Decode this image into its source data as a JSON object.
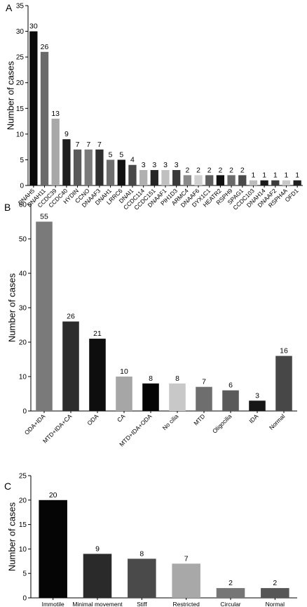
{
  "chart_data": [
    {
      "type": "bar",
      "panel_label": "A",
      "ylabel": "Number of cases",
      "ylim": [
        0,
        35
      ],
      "yticks": [
        0,
        5,
        10,
        15,
        20,
        25,
        30,
        35
      ],
      "categories": [
        "DNAH5",
        "DNAH11",
        "CCDC39",
        "CCDC40",
        "HYDIN",
        "CCNO",
        "DNAAF3",
        "DNAH1",
        "LRRC6",
        "DNAI1",
        "CCDC114",
        "CCDC151",
        "DNAAF1",
        "PIH1D3",
        "ARMC4",
        "DNAAF6",
        "DYX1C1",
        "HEATR2",
        "RSPH9",
        "SPAG1",
        "CCDC103",
        "DNAH14",
        "DNAAF2",
        "RSPH4A",
        "OFD1"
      ],
      "values": [
        30,
        26,
        13,
        9,
        7,
        7,
        7,
        5,
        5,
        4,
        3,
        3,
        3,
        3,
        2,
        2,
        2,
        2,
        2,
        2,
        1,
        1,
        1,
        1,
        1
      ],
      "colors": [
        "#0a0a0a",
        "#6b6b6b",
        "#a8a8a8",
        "#1e1e1e",
        "#5a5a5a",
        "#7a7a7a",
        "#2e2e2e",
        "#6e6e6e",
        "#111111",
        "#484848",
        "#b0b0b0",
        "#252525",
        "#c0c0c0",
        "#3a3a3a",
        "#8a8a8a",
        "#d0d0d0",
        "#5e5e5e",
        "#101010",
        "#6a6a6a",
        "#4a4a4a",
        "#bcbcbc",
        "#1a1a1a",
        "#3c3c3c",
        "#c8c8c8",
        "#202020"
      ]
    },
    {
      "type": "bar",
      "panel_label": "B",
      "ylabel": "Number of cases",
      "ylim": [
        0,
        60
      ],
      "yticks": [
        0,
        10,
        20,
        30,
        40,
        50,
        60
      ],
      "categories": [
        "ODA+IDA",
        "MTD+IDA+CA",
        "ODA",
        "CA",
        "MTD+IDA+ODA",
        "No cilia",
        "MTD",
        "Oligocilia",
        "IDA",
        "Normal"
      ],
      "values": [
        55,
        26,
        21,
        10,
        8,
        8,
        7,
        6,
        3,
        16
      ],
      "colors": [
        "#7a7a7a",
        "#2c2c2c",
        "#0e0e0e",
        "#a6a6a6",
        "#050505",
        "#c8c8c8",
        "#6e6e6e",
        "#5a5a5a",
        "#161616",
        "#474747"
      ]
    },
    {
      "type": "bar",
      "panel_label": "C",
      "ylabel": "Number of cases",
      "ylim": [
        0,
        25
      ],
      "yticks": [
        0,
        5,
        10,
        15,
        20,
        25
      ],
      "categories": [
        "Immotile",
        "Minimal movement",
        "Stiff",
        "Restricted",
        "Circular",
        "Normal"
      ],
      "values": [
        20,
        9,
        8,
        7,
        2,
        2
      ],
      "colors": [
        "#050505",
        "#2a2a2a",
        "#4a4a4a",
        "#a8a8a8",
        "#767676",
        "#565656"
      ]
    }
  ]
}
